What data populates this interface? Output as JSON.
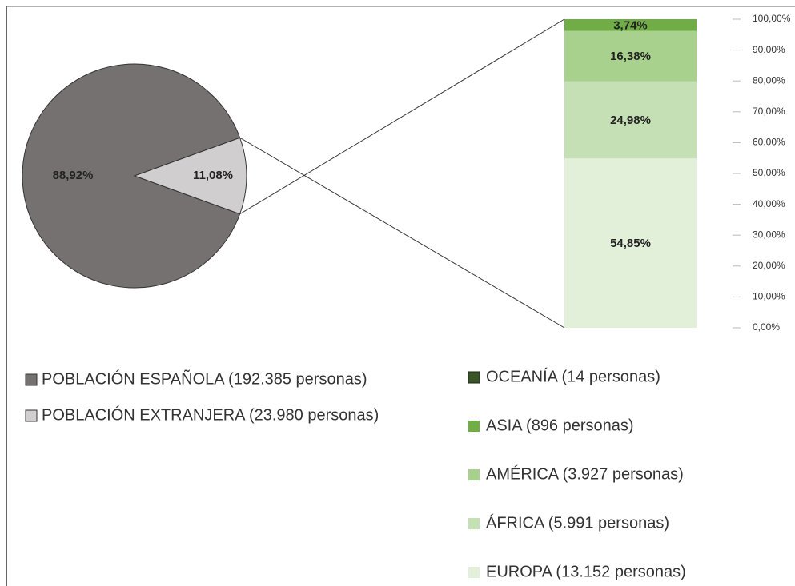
{
  "chart_data": [
    {
      "type": "pie",
      "series": [
        {
          "name": "POBLACIÓN ESPAÑOLA (192.385 personas)",
          "color": "#767171"
        },
        {
          "name": "POBLACIÓN  EXTRANJERA (23.980 personas)",
          "color": "#d0cece"
        }
      ],
      "values": [
        88.92,
        11.08
      ],
      "value_labels": [
        "88,92%",
        "11,08%"
      ]
    },
    {
      "type": "bar",
      "stacked": true,
      "series": [
        {
          "name": "OCEANÍA (14 personas)",
          "color": "#375623",
          "values": [
            0.06
          ]
        },
        {
          "name": "ASIA (896 personas)",
          "color": "#70ad47",
          "values": [
            3.74
          ],
          "value_labels": [
            "3,74%"
          ]
        },
        {
          "name": "AMÉRICA (3.927 personas)",
          "color": "#a9d18e",
          "values": [
            16.38
          ],
          "value_labels": [
            "16,38%"
          ]
        },
        {
          "name": "ÁFRICA (5.991 personas)",
          "color": "#c5e0b4",
          "values": [
            24.98
          ],
          "value_labels": [
            "24,98%"
          ]
        },
        {
          "name": "EUROPA (13.152 personas)",
          "color": "#e2f0d9",
          "values": [
            54.85
          ],
          "value_labels": [
            "54,85%"
          ]
        }
      ],
      "ylim": [
        0,
        100
      ],
      "yticks": [
        {
          "value": 0,
          "label": "0,00%"
        },
        {
          "value": 10,
          "label": "10,00%"
        },
        {
          "value": 20,
          "label": "20,00%"
        },
        {
          "value": 30,
          "label": "30,00%"
        },
        {
          "value": 40,
          "label": "40,00%"
        },
        {
          "value": 50,
          "label": "50,00%"
        },
        {
          "value": 60,
          "label": "60,00%"
        },
        {
          "value": 70,
          "label": "70,00%"
        },
        {
          "value": 80,
          "label": "80,00%"
        },
        {
          "value": 90,
          "label": "90,00%"
        },
        {
          "value": 100,
          "label": "100,00%"
        }
      ]
    }
  ]
}
